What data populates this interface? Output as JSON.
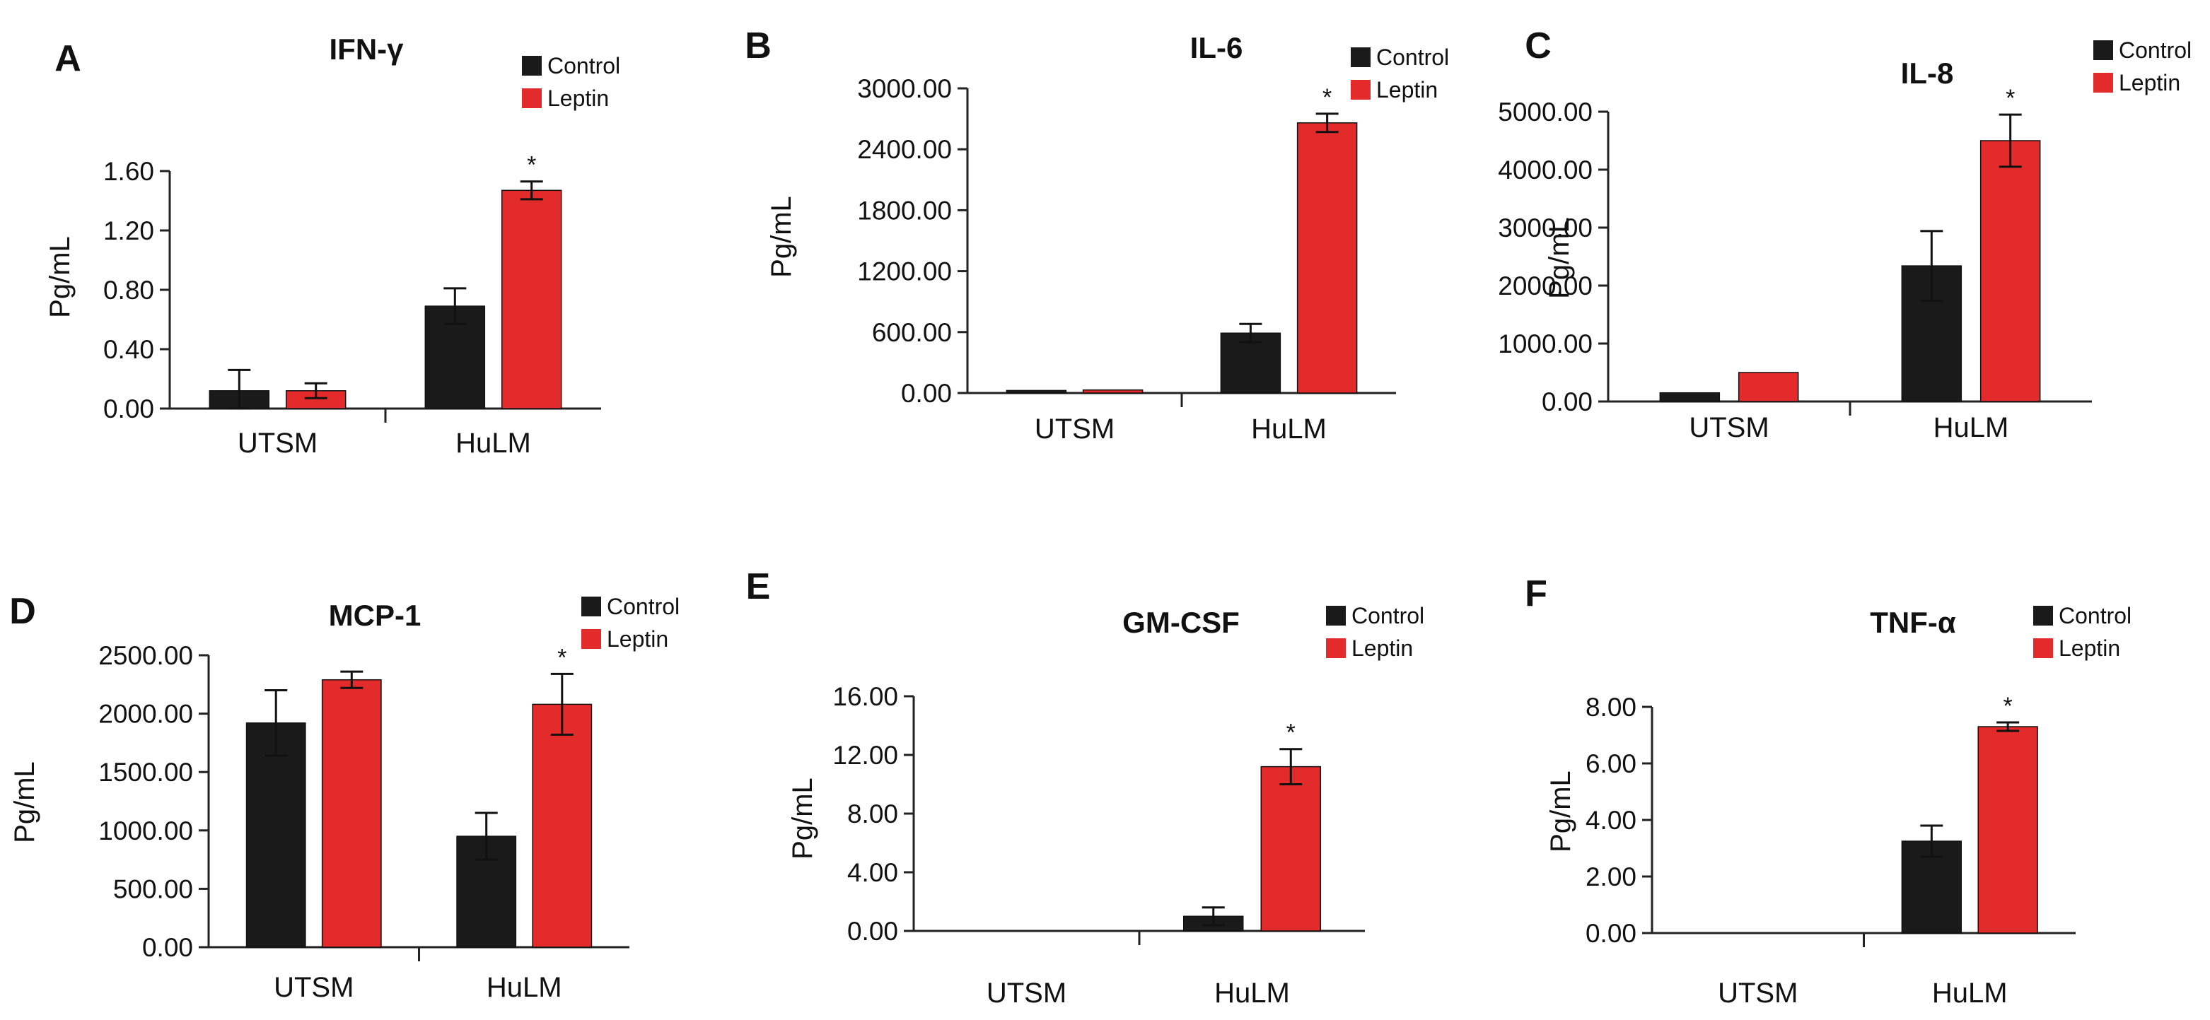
{
  "colors": {
    "control": "#1a1a1a",
    "leptin": "#e32b2b"
  },
  "legend": {
    "control": "Control",
    "leptin": "Leptin"
  },
  "chart_data": [
    {
      "panel": "A",
      "type": "bar",
      "title": "IFN-γ",
      "categories": [
        "UTSM",
        "HuLM"
      ],
      "xlabel": "",
      "ylabel": "Pg/mL",
      "ylim": [
        0,
        1.6
      ],
      "yticks": [
        0,
        0.4,
        0.8,
        1.2,
        1.6
      ],
      "yticklabels": [
        "0.00",
        "0.40",
        "0.80",
        "1.20",
        "1.60"
      ],
      "series": [
        {
          "name": "Control",
          "values": [
            0.12,
            0.69
          ],
          "errors": [
            0.14,
            0.12
          ]
        },
        {
          "name": "Leptin",
          "values": [
            0.12,
            1.47
          ],
          "errors": [
            0.05,
            0.06
          ]
        }
      ],
      "significance": [
        {
          "series": "Leptin",
          "category": "HuLM",
          "label": "*"
        }
      ]
    },
    {
      "panel": "B",
      "type": "bar",
      "title": "IL-6",
      "categories": [
        "UTSM",
        "HuLM"
      ],
      "xlabel": "",
      "ylabel": "Pg/mL",
      "ylim": [
        0,
        3000
      ],
      "yticks": [
        0,
        600,
        1200,
        1800,
        2400,
        3000
      ],
      "yticklabels": [
        "0.00",
        "600.00",
        "1200.00",
        "1800.00",
        "2400.00",
        "3000.00"
      ],
      "series": [
        {
          "name": "Control",
          "values": [
            25,
            590
          ],
          "errors": [
            0,
            90
          ]
        },
        {
          "name": "Leptin",
          "values": [
            30,
            2660
          ],
          "errors": [
            0,
            90
          ]
        }
      ],
      "significance": [
        {
          "series": "Leptin",
          "category": "HuLM",
          "label": "*"
        }
      ]
    },
    {
      "panel": "C",
      "type": "bar",
      "title": "IL-8",
      "categories": [
        "UTSM",
        "HuLM"
      ],
      "xlabel": "",
      "ylabel": "Pg/mL",
      "ylim": [
        0,
        5000
      ],
      "yticks": [
        0,
        1000,
        2000,
        3000,
        4000,
        5000
      ],
      "yticklabels": [
        "0.00",
        "1000.00",
        "2000.00",
        "3000.00",
        "4000.00",
        "5000.00"
      ],
      "series": [
        {
          "name": "Control",
          "values": [
            150,
            2340
          ],
          "errors": [
            0,
            600
          ]
        },
        {
          "name": "Leptin",
          "values": [
            500,
            4500
          ],
          "errors": [
            0,
            450
          ]
        }
      ],
      "significance": [
        {
          "series": "Leptin",
          "category": "HuLM",
          "label": "*"
        }
      ]
    },
    {
      "panel": "D",
      "type": "bar",
      "title": "MCP-1",
      "categories": [
        "UTSM",
        "HuLM"
      ],
      "xlabel": "",
      "ylabel": "Pg/mL",
      "ylim": [
        0,
        2500
      ],
      "yticks": [
        0,
        500,
        1000,
        1500,
        2000,
        2500
      ],
      "yticklabels": [
        "0.00",
        "500.00",
        "1000.00",
        "1500.00",
        "2000.00",
        "2500.00"
      ],
      "series": [
        {
          "name": "Control",
          "values": [
            1920,
            950
          ],
          "errors": [
            280,
            200
          ]
        },
        {
          "name": "Leptin",
          "values": [
            2290,
            2080
          ],
          "errors": [
            70,
            260
          ]
        }
      ],
      "significance": [
        {
          "series": "Leptin",
          "category": "HuLM",
          "label": "*"
        }
      ]
    },
    {
      "panel": "E",
      "type": "bar",
      "title": "GM-CSF",
      "categories": [
        "UTSM",
        "HuLM"
      ],
      "xlabel": "",
      "ylabel": "Pg/mL",
      "ylim": [
        0,
        16
      ],
      "yticks": [
        0,
        4,
        8,
        12,
        16
      ],
      "yticklabels": [
        "0.00",
        "4.00",
        "8.00",
        "12.00",
        "16.00"
      ],
      "series": [
        {
          "name": "Control",
          "values": [
            0,
            1.0
          ],
          "errors": [
            0,
            0.6
          ]
        },
        {
          "name": "Leptin",
          "values": [
            0,
            11.2
          ],
          "errors": [
            0,
            1.2
          ]
        }
      ],
      "significance": [
        {
          "series": "Leptin",
          "category": "HuLM",
          "label": "*"
        }
      ]
    },
    {
      "panel": "F",
      "type": "bar",
      "title": "TNF-α",
      "categories": [
        "UTSM",
        "HuLM"
      ],
      "xlabel": "",
      "ylabel": "Pg/mL",
      "ylim": [
        0,
        8
      ],
      "yticks": [
        0,
        2,
        4,
        6,
        8
      ],
      "yticklabels": [
        "0.00",
        "2.00",
        "4.00",
        "6.00",
        "8.00"
      ],
      "series": [
        {
          "name": "Control",
          "values": [
            0,
            3.25
          ],
          "errors": [
            0,
            0.55
          ]
        },
        {
          "name": "Leptin",
          "values": [
            0,
            7.3
          ],
          "errors": [
            0,
            0.15
          ]
        }
      ],
      "significance": [
        {
          "series": "Leptin",
          "category": "HuLM",
          "label": "*"
        }
      ]
    }
  ]
}
